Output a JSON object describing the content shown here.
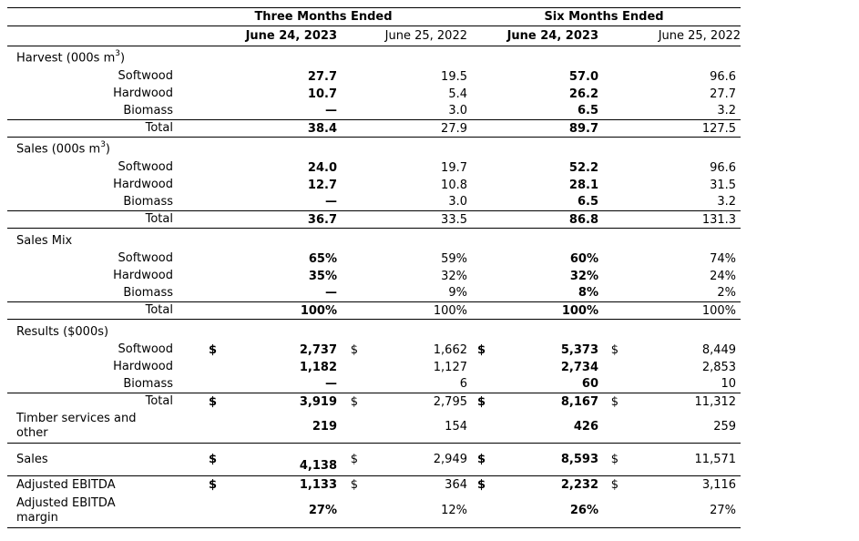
{
  "page": {
    "background_color": "#ffffff",
    "text_color": "#000000",
    "rule_color": "#000000"
  },
  "table": {
    "header": {
      "group_columns": [
        {
          "label": "Three Months Ended"
        },
        {
          "label": "Six Months Ended"
        }
      ],
      "date_columns": [
        {
          "label": "June 24, 2023",
          "bold": true
        },
        {
          "label": "June 25, 2022",
          "bold": false
        },
        {
          "label": "June 24, 2023",
          "bold": true
        },
        {
          "label": "June 25, 2022",
          "bold": false
        }
      ]
    },
    "rows": [
      {
        "kind": "section",
        "label_pre": "Harvest (000s m",
        "label_sup": "3",
        "label_post": ")",
        "rh": 24
      },
      {
        "kind": "item",
        "label": "Softwood",
        "values": [
          "27.7",
          "19.5",
          "57.0",
          "96.6"
        ],
        "rh": 19
      },
      {
        "kind": "item",
        "label": "Hardwood",
        "values": [
          "10.7",
          "5.4",
          "26.2",
          "27.7"
        ],
        "rh": 19
      },
      {
        "kind": "item",
        "label": "Biomass",
        "values": [
          "—",
          "3.0",
          "6.5",
          "3.2"
        ],
        "rh": 19
      },
      {
        "kind": "total",
        "label": "Total",
        "values": [
          "38.4",
          "27.9",
          "89.7",
          "127.5"
        ],
        "bt": true,
        "bb": true,
        "rh": 19
      },
      {
        "kind": "section",
        "label_pre": "Sales (000s m",
        "label_sup": "3",
        "label_post": ")",
        "rh": 24
      },
      {
        "kind": "item",
        "label": "Softwood",
        "values": [
          "24.0",
          "19.7",
          "52.2",
          "96.6"
        ],
        "rh": 19
      },
      {
        "kind": "item",
        "label": "Hardwood",
        "values": [
          "12.7",
          "10.8",
          "28.1",
          "31.5"
        ],
        "rh": 19
      },
      {
        "kind": "item",
        "label": "Biomass",
        "values": [
          "—",
          "3.0",
          "6.5",
          "3.2"
        ],
        "rh": 19
      },
      {
        "kind": "total",
        "label": "Total",
        "values": [
          "36.7",
          "33.5",
          "86.8",
          "131.3"
        ],
        "bt": true,
        "bb": true,
        "rh": 19
      },
      {
        "kind": "section",
        "label": "Sales Mix",
        "rh": 24
      },
      {
        "kind": "item",
        "label": "Softwood",
        "values": [
          "65%",
          "59%",
          "60%",
          "74%"
        ],
        "rh": 19
      },
      {
        "kind": "item",
        "label": "Hardwood",
        "values": [
          "35%",
          "32%",
          "32%",
          "24%"
        ],
        "rh": 19
      },
      {
        "kind": "item",
        "label": "Biomass",
        "values": [
          "—",
          "9%",
          "8%",
          "2%"
        ],
        "rh": 19
      },
      {
        "kind": "total",
        "label": "Total",
        "values": [
          "100%",
          "100%",
          "100%",
          "100%"
        ],
        "bt": true,
        "bb": true,
        "rh": 19
      },
      {
        "kind": "section",
        "label": "Results ($000s)",
        "rh": 24
      },
      {
        "kind": "item",
        "label": "Softwood",
        "dollars": [
          "$",
          "$",
          "$",
          "$"
        ],
        "values": [
          "2,737",
          "1,662",
          "5,373",
          "8,449"
        ],
        "rh": 19
      },
      {
        "kind": "item",
        "label": "Hardwood",
        "values": [
          "1,182",
          "1,127",
          "2,734",
          "2,853"
        ],
        "rh": 19
      },
      {
        "kind": "item",
        "label": "Biomass",
        "values": [
          "—",
          "6",
          "60",
          "10"
        ],
        "rh": 19
      },
      {
        "kind": "total",
        "label": "Total",
        "dollars": [
          "$",
          "$",
          "$",
          "$"
        ],
        "values": [
          "3,919",
          "2,795",
          "8,167",
          "11,312"
        ],
        "bt": true,
        "rh": 19
      },
      {
        "kind": "left",
        "lines": [
          "Timber services and",
          "other"
        ],
        "values": [
          "219",
          "154",
          "426",
          "259"
        ],
        "bb": true,
        "rh": 36
      },
      {
        "kind": "left",
        "lines": [
          "Sales"
        ],
        "dollars": [
          "$",
          "$",
          "$",
          "$"
        ],
        "values": [
          "4,138",
          "2,949",
          "8,593",
          "11,571"
        ],
        "drop": [
          0
        ],
        "bb": true,
        "rh": 36
      },
      {
        "kind": "left",
        "lines": [
          "Adjusted EBITDA"
        ],
        "dollars": [
          "$",
          "$",
          "$",
          "$"
        ],
        "values": [
          "1,133",
          "364",
          "2,232",
          "3,116"
        ],
        "rh": 20
      },
      {
        "kind": "left",
        "lines": [
          "Adjusted EBITDA",
          "margin"
        ],
        "values": [
          "27%",
          "12%",
          "26%",
          "27%"
        ],
        "bb": true,
        "rh": 37
      }
    ]
  }
}
